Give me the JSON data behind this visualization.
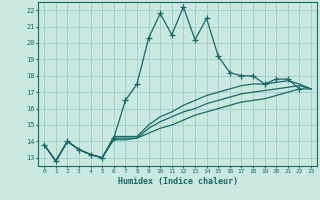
{
  "xlabel": "Humidex (Indice chaleur)",
  "xlim": [
    -0.5,
    23.5
  ],
  "ylim": [
    12.5,
    22.5
  ],
  "xticks": [
    0,
    1,
    2,
    3,
    4,
    5,
    6,
    7,
    8,
    9,
    10,
    11,
    12,
    13,
    14,
    15,
    16,
    17,
    18,
    19,
    20,
    21,
    22,
    23
  ],
  "yticks": [
    13,
    14,
    15,
    16,
    17,
    18,
    19,
    20,
    21,
    22
  ],
  "bg_color": "#c8e8e0",
  "grid_color": "#a8d0cc",
  "line_color": "#1a6868",
  "lines": [
    {
      "x": [
        0,
        1,
        2,
        3,
        4,
        5,
        6,
        7,
        8,
        9,
        10,
        11,
        12,
        13,
        14,
        15,
        16,
        17,
        18,
        19,
        20,
        21,
        22
      ],
      "y": [
        13.8,
        12.8,
        14.0,
        13.5,
        13.2,
        13.0,
        14.2,
        16.5,
        17.5,
        20.3,
        21.8,
        20.5,
        22.2,
        20.2,
        21.5,
        19.2,
        18.2,
        18.0,
        18.0,
        17.5,
        17.8,
        17.8,
        17.2
      ],
      "marker": true
    },
    {
      "x": [
        0,
        1,
        2,
        3,
        4,
        5,
        6,
        7,
        8,
        9,
        10,
        11,
        12,
        13,
        14,
        15,
        16,
        17,
        18,
        19,
        20,
        21,
        22,
        23
      ],
      "y": [
        13.8,
        12.8,
        14.0,
        13.5,
        13.2,
        13.0,
        14.3,
        14.3,
        14.3,
        15.0,
        15.5,
        15.8,
        16.2,
        16.5,
        16.8,
        17.0,
        17.2,
        17.4,
        17.5,
        17.5,
        17.6,
        17.7,
        17.5,
        17.2
      ],
      "marker": false
    },
    {
      "x": [
        0,
        1,
        2,
        3,
        4,
        5,
        6,
        7,
        8,
        9,
        10,
        11,
        12,
        13,
        14,
        15,
        16,
        17,
        18,
        19,
        20,
        21,
        22,
        23
      ],
      "y": [
        13.8,
        12.8,
        14.0,
        13.5,
        13.2,
        13.0,
        14.2,
        14.2,
        14.2,
        14.8,
        15.2,
        15.5,
        15.8,
        16.0,
        16.3,
        16.5,
        16.7,
        16.9,
        17.0,
        17.1,
        17.2,
        17.3,
        17.4,
        17.2
      ],
      "marker": false
    },
    {
      "x": [
        0,
        1,
        2,
        3,
        4,
        5,
        6,
        7,
        8,
        9,
        10,
        11,
        12,
        13,
        14,
        15,
        16,
        17,
        18,
        19,
        20,
        21,
        22,
        23
      ],
      "y": [
        13.8,
        12.8,
        14.0,
        13.5,
        13.2,
        13.0,
        14.1,
        14.1,
        14.2,
        14.5,
        14.8,
        15.0,
        15.3,
        15.6,
        15.8,
        16.0,
        16.2,
        16.4,
        16.5,
        16.6,
        16.8,
        17.0,
        17.2,
        17.2
      ],
      "marker": false
    }
  ]
}
